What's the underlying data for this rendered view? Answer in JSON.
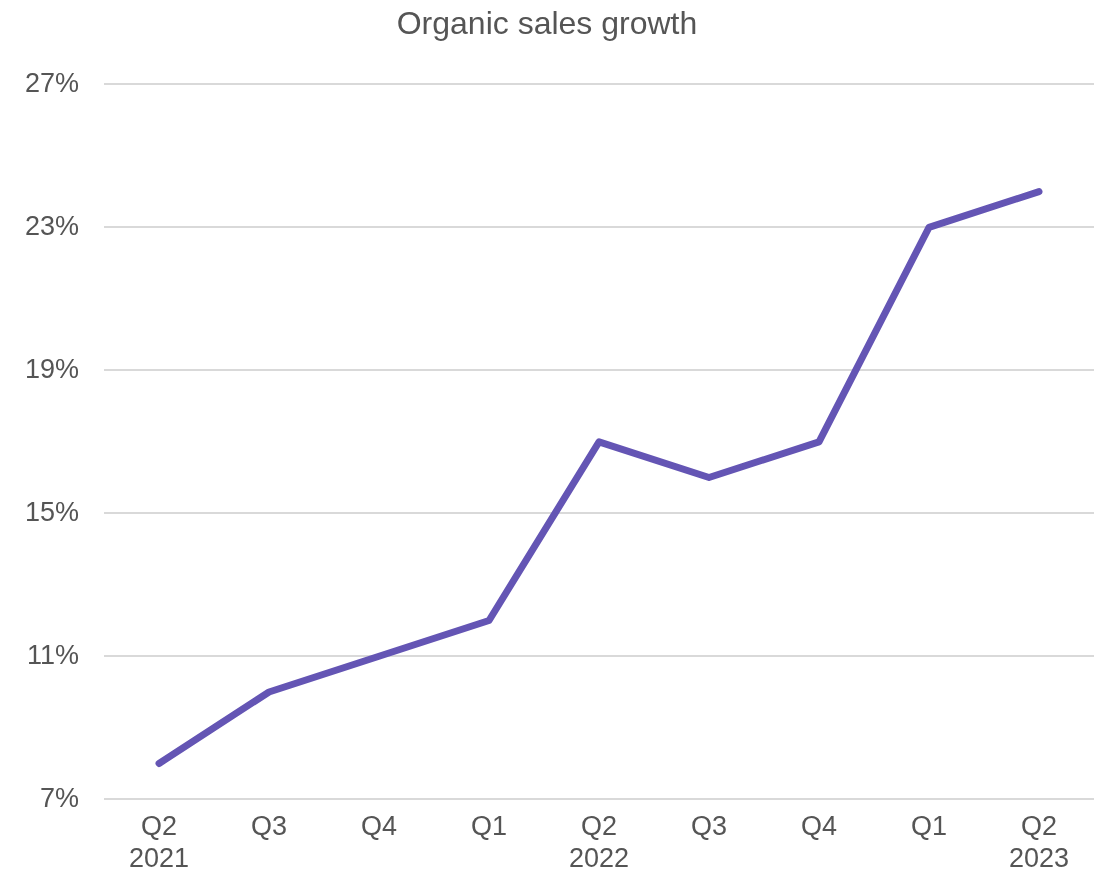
{
  "chart_data": {
    "type": "line",
    "title": "Organic sales growth",
    "categories": [
      "Q2\n2021",
      "Q3",
      "Q4",
      "Q1",
      "Q2\n2022",
      "Q3",
      "Q4",
      "Q1",
      "Q2\n2023"
    ],
    "series": [
      {
        "color": "#6455b4",
        "values": [
          8,
          10,
          11,
          12,
          17,
          16,
          17,
          23,
          24
        ]
      }
    ],
    "ylim": [
      7,
      27
    ],
    "yticks": [
      {
        "value": 7,
        "label": "7%"
      },
      {
        "value": 11,
        "label": "11%"
      },
      {
        "value": 15,
        "label": "15%"
      },
      {
        "value": 19,
        "label": "19%"
      },
      {
        "value": 23,
        "label": "23%"
      },
      {
        "value": 27,
        "label": "27%"
      }
    ],
    "grid": "y",
    "legend": false,
    "marker": "none",
    "line_style": "solid"
  }
}
